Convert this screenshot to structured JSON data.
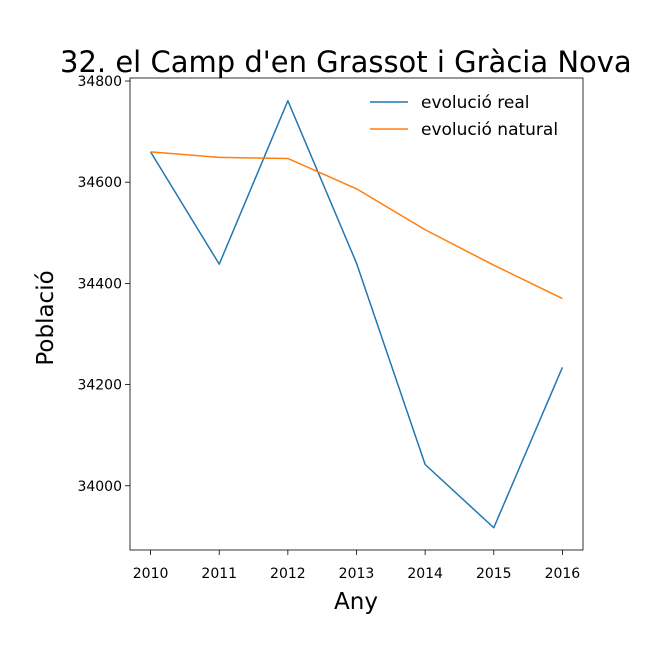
{
  "chart_data": {
    "type": "line",
    "title": "32. el Camp d'en Grassot i Gràcia Nova",
    "xlabel": "Any",
    "ylabel": "Població",
    "x": [
      2010,
      2011,
      2012,
      2013,
      2014,
      2015,
      2016
    ],
    "xlim": [
      2009.7,
      2016.3
    ],
    "ylim": [
      33873,
      34806
    ],
    "yticks": [
      34000,
      34200,
      34400,
      34600,
      34800
    ],
    "xticks": [
      2010,
      2011,
      2012,
      2013,
      2014,
      2015,
      2016
    ],
    "grid": false,
    "legend_position": "top-right",
    "series": [
      {
        "name": "evolució real",
        "color": "#1f77b4",
        "values": [
          34660,
          34438,
          34761,
          34440,
          34042,
          33917,
          34234
        ]
      },
      {
        "name": "evolució natural",
        "color": "#ff7f0e",
        "values": [
          34660,
          34649,
          34647,
          34587,
          34506,
          34436,
          34370
        ]
      }
    ]
  }
}
